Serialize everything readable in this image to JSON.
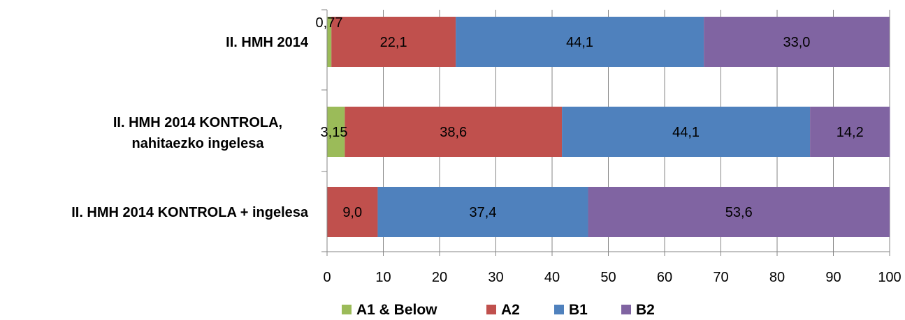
{
  "chart_data": {
    "type": "bar",
    "orientation": "horizontal",
    "stacked": true,
    "categories": [
      [
        "II. HMH 2014"
      ],
      [
        "II. HMH 2014 KONTROLA,",
        "nahitaezko ingelesa"
      ],
      [
        "II. HMH 2014 KONTROLA + ingelesa"
      ]
    ],
    "series": [
      {
        "name": "A1 & Below",
        "color": "#9bbb59",
        "values": [
          0.77,
          3.15,
          0
        ],
        "labels": [
          "0,77",
          "3,15",
          ""
        ]
      },
      {
        "name": "A2",
        "color": "#c0504d",
        "values": [
          22.1,
          38.6,
          9.0
        ],
        "labels": [
          "22,1",
          "38,6",
          "9,0"
        ]
      },
      {
        "name": "B1",
        "color": "#4f81bd",
        "values": [
          44.1,
          44.1,
          37.4
        ],
        "labels": [
          "44,1",
          "44,1",
          "37,4"
        ]
      },
      {
        "name": "B2",
        "color": "#8064a2",
        "values": [
          33.0,
          14.2,
          53.6
        ],
        "labels": [
          "33,0",
          "14,2",
          "53,6"
        ]
      }
    ],
    "xlim": [
      0,
      100
    ],
    "xticks": [
      "0",
      "10",
      "20",
      "30",
      "40",
      "50",
      "60",
      "70",
      "80",
      "90",
      "100"
    ],
    "grid": "vertical",
    "gridline_color": "#868686",
    "legend": "bottom"
  }
}
